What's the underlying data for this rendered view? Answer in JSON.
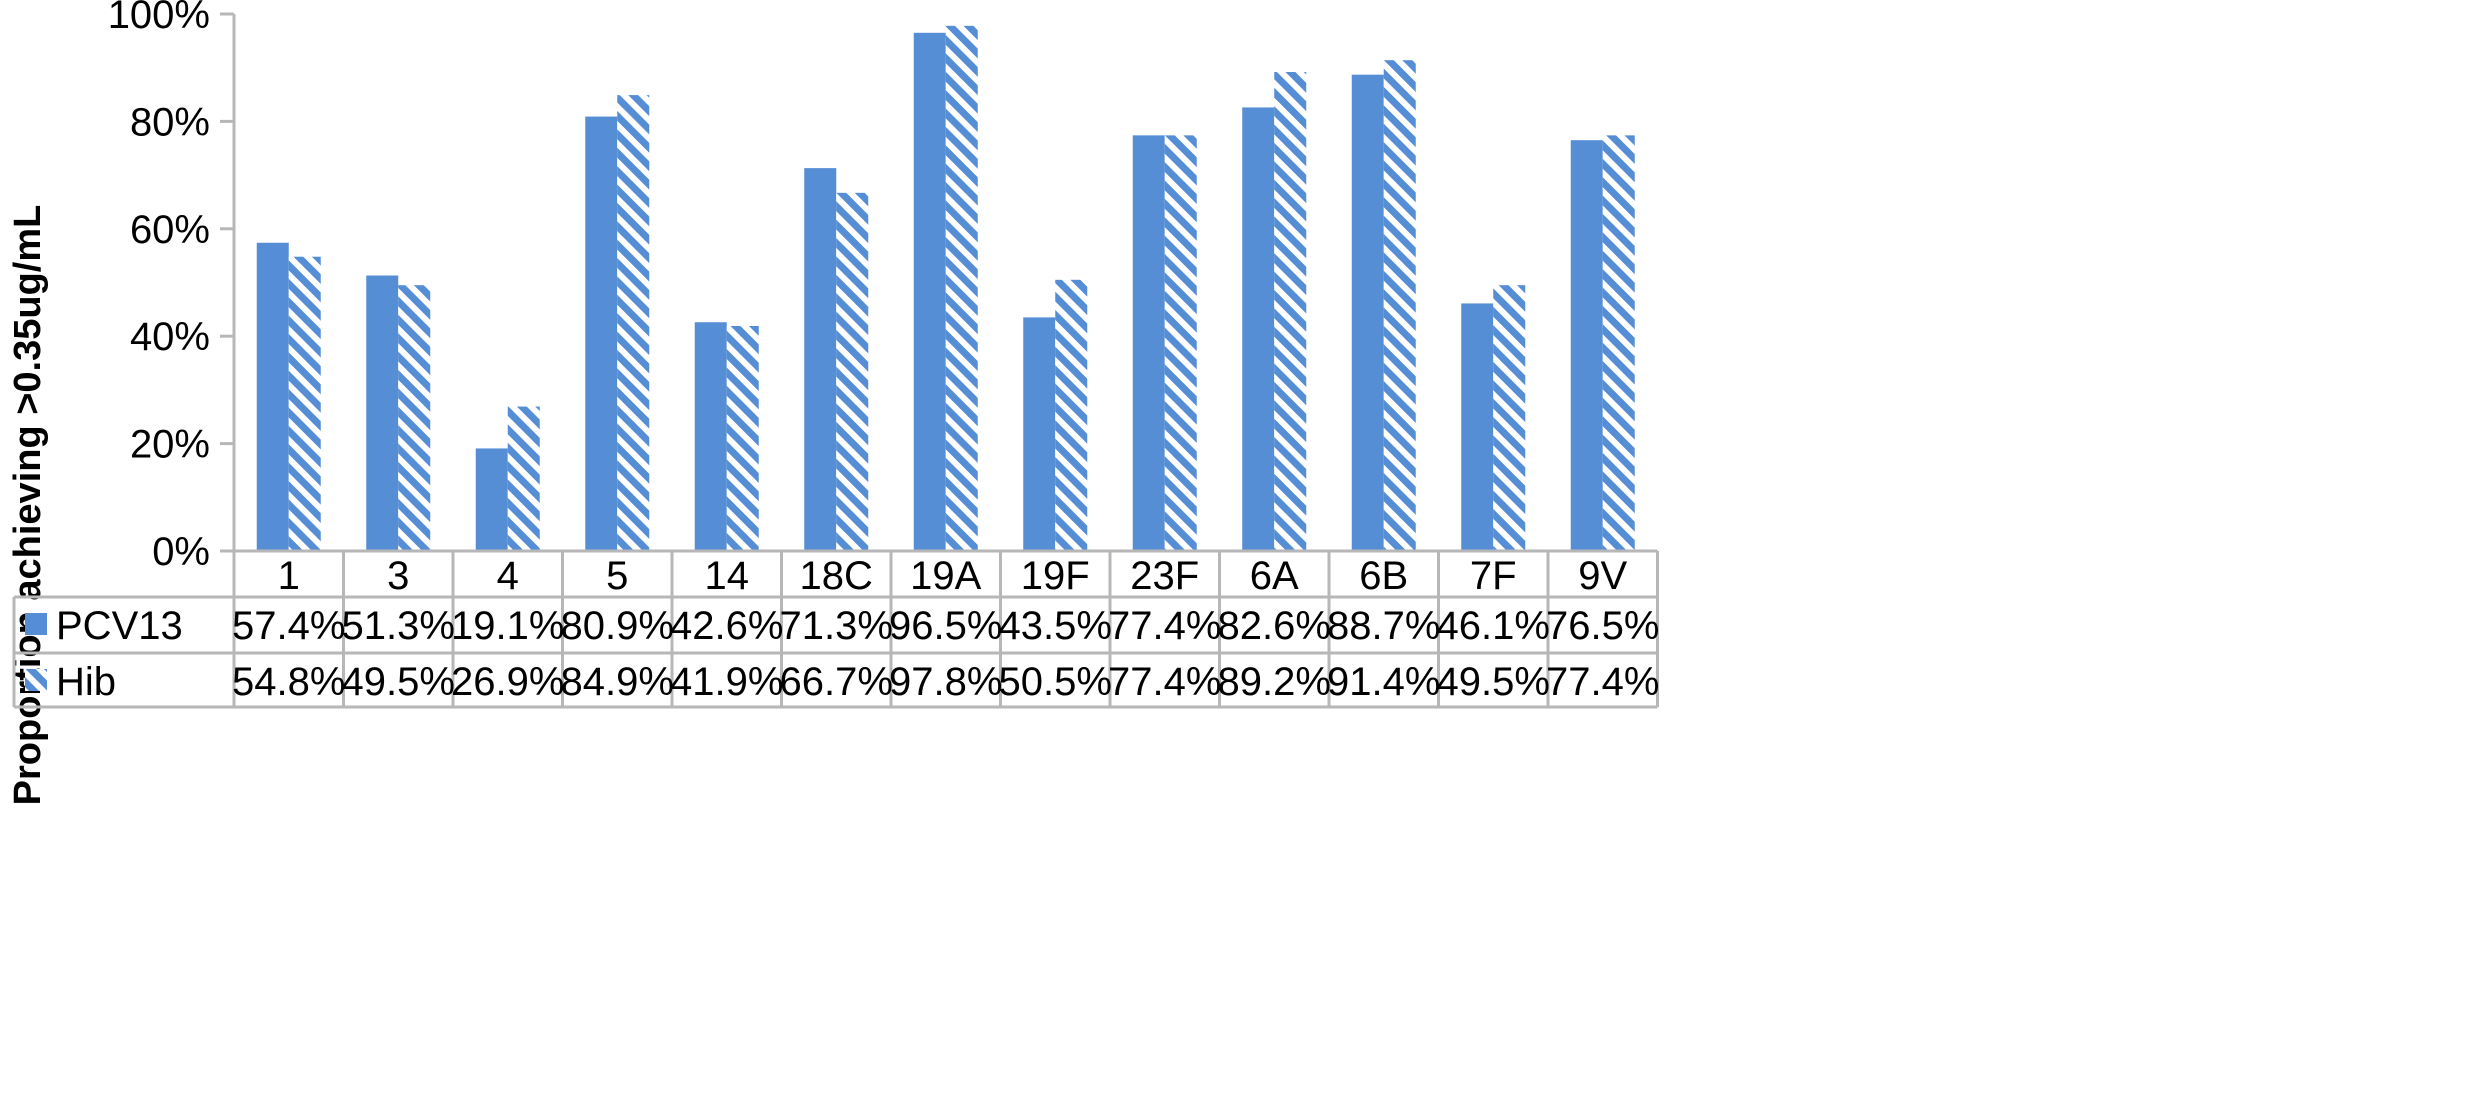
{
  "chart_data": {
    "type": "bar",
    "ylabel": "Proportion achieving >0.35ug/mL",
    "ylim": [
      0,
      100
    ],
    "y_ticks": [
      "0%",
      "20%",
      "40%",
      "60%",
      "80%",
      "100%"
    ],
    "y_tick_values": [
      0,
      20,
      40,
      60,
      80,
      100
    ],
    "categories": [
      "1",
      "3",
      "4",
      "5",
      "14",
      "18C",
      "19A",
      "19F",
      "23F",
      "6A",
      "6B",
      "7F",
      "9V"
    ],
    "series": [
      {
        "name": "PCV13",
        "style": "solid",
        "color": "#558ED5",
        "values": [
          57.4,
          51.3,
          19.1,
          80.9,
          42.6,
          71.3,
          96.5,
          43.5,
          77.4,
          82.6,
          88.7,
          46.1,
          76.5
        ],
        "labels": [
          "57.4%",
          "51.3%",
          "19.1%",
          "80.9%",
          "42.6%",
          "71.3%",
          "96.5%",
          "43.5%",
          "77.4%",
          "82.6%",
          "88.7%",
          "46.1%",
          "76.5%"
        ]
      },
      {
        "name": "Hib",
        "style": "diagonal-hatch",
        "color": "#558ED5",
        "values": [
          54.8,
          49.5,
          26.9,
          84.9,
          41.9,
          66.7,
          97.8,
          50.5,
          77.4,
          89.2,
          91.4,
          49.5,
          77.4
        ],
        "labels": [
          "54.8%",
          "49.5%",
          "26.9%",
          "84.9%",
          "41.9%",
          "66.7%",
          "97.8%",
          "50.5%",
          "77.4%",
          "89.2%",
          "91.4%",
          "49.5%",
          "77.4%"
        ]
      }
    ],
    "grid": false,
    "legend": "data-table-left"
  }
}
